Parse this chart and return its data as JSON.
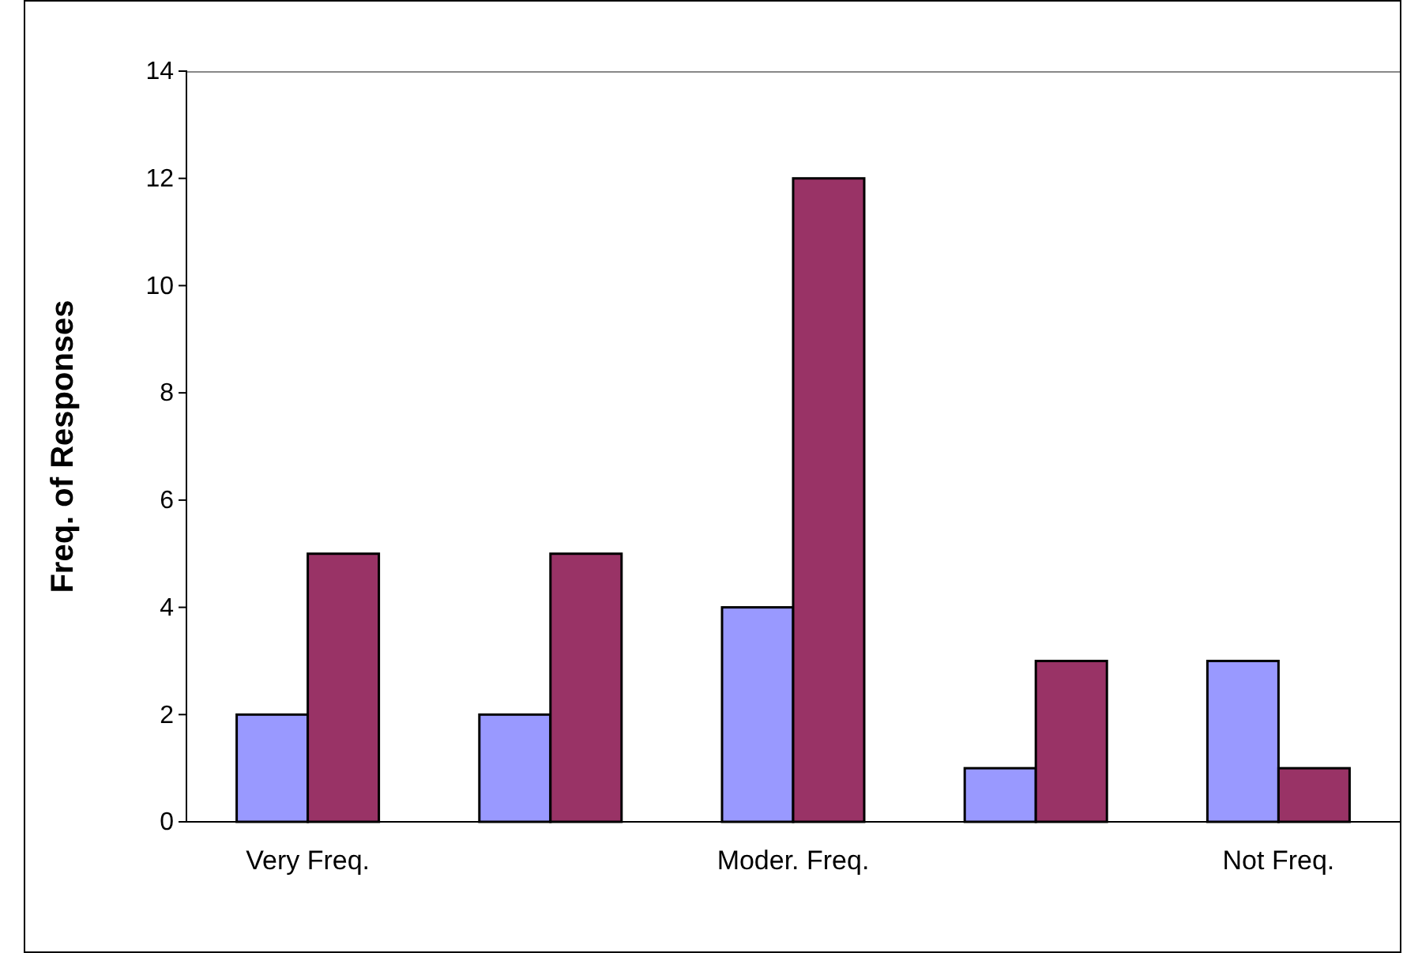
{
  "chart_data": {
    "type": "bar",
    "ylabel": "Freq. of Responses",
    "categories": [
      "Very Freq.",
      null,
      "Moder. Freq.",
      null,
      "Not Freq."
    ],
    "series": [
      {
        "color": "#9999ff",
        "values": [
          2,
          2,
          4,
          1,
          3
        ]
      },
      {
        "color": "#993366",
        "values": [
          5,
          5,
          12,
          3,
          1
        ]
      }
    ],
    "ylim": [
      0,
      14
    ],
    "yticks": [
      0,
      2,
      4,
      6,
      8,
      10,
      12,
      14
    ],
    "grid": false
  }
}
